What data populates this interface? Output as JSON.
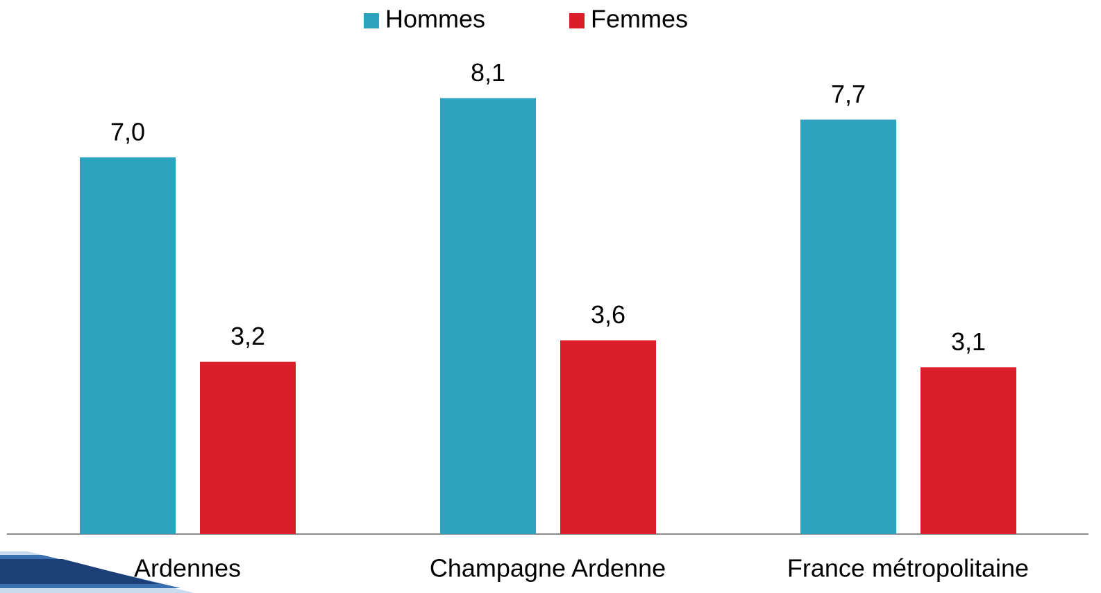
{
  "chart_data": {
    "type": "bar",
    "categories": [
      "Ardennes",
      "Champagne Ardenne",
      "France métropolitaine"
    ],
    "series": [
      {
        "name": "Hommes",
        "color": "#2EA3BF",
        "values": [
          7.0,
          8.1,
          7.7
        ],
        "value_labels": [
          "7,0",
          "8,1",
          "7,7"
        ]
      },
      {
        "name": "Femmes",
        "color": "#DA1F2A",
        "values": [
          3.2,
          3.6,
          3.1
        ],
        "value_labels": [
          "3,2",
          "3,6",
          "3,1"
        ]
      }
    ],
    "legend": "top"
  }
}
